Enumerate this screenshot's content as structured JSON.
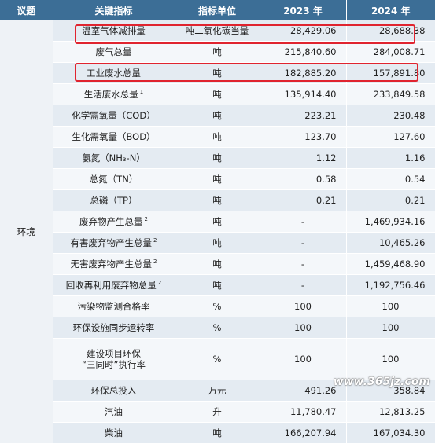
{
  "headers": [
    "议题",
    "关键指标",
    "指标单位",
    "2023 年",
    "2024 年"
  ],
  "topic": "环境",
  "rows": [
    {
      "name": "温室气体减排量",
      "sup": "",
      "unit": "吨二氧化碳当量",
      "y2023": "28,429.06",
      "y2024": "28,688.38"
    },
    {
      "name": "废气总量",
      "sup": "",
      "unit": "吨",
      "y2023": "215,840.60",
      "y2024": "284,008.71"
    },
    {
      "name": "工业废水总量",
      "sup": "",
      "unit": "吨",
      "y2023": "182,885.20",
      "y2024": "157,891.80"
    },
    {
      "name": "生活废水总量",
      "sup": "1",
      "unit": "吨",
      "y2023": "135,914.40",
      "y2024": "233,849.58"
    },
    {
      "name": "化学需氧量（COD）",
      "sup": "",
      "unit": "吨",
      "y2023": "223.21",
      "y2024": "230.48"
    },
    {
      "name": "生化需氧量（BOD）",
      "sup": "",
      "unit": "吨",
      "y2023": "123.70",
      "y2024": "127.60"
    },
    {
      "name": "氨氮（NH₃-N）",
      "sup": "",
      "unit": "吨",
      "y2023": "1.12",
      "y2024": "1.16"
    },
    {
      "name": "总氮（TN）",
      "sup": "",
      "unit": "吨",
      "y2023": "0.58",
      "y2024": "0.54"
    },
    {
      "name": "总磷（TP）",
      "sup": "",
      "unit": "吨",
      "y2023": "0.21",
      "y2024": "0.21"
    },
    {
      "name": "废弃物产生总量",
      "sup": "2",
      "unit": "吨",
      "y2023": "-",
      "y2024": "1,469,934.16"
    },
    {
      "name": "有害废弃物产生总量",
      "sup": "2",
      "unit": "吨",
      "y2023": "-",
      "y2024": "10,465.26"
    },
    {
      "name": "无害废弃物产生总量",
      "sup": "2",
      "unit": "吨",
      "y2023": "-",
      "y2024": "1,459,468.90"
    },
    {
      "name": "回收再利用废弃物总量",
      "sup": "2",
      "unit": "吨",
      "y2023": "-",
      "y2024": "1,192,756.46"
    },
    {
      "name": "污染物监测合格率",
      "sup": "",
      "unit": "%",
      "y2023": "100",
      "y2024": "100"
    },
    {
      "name": "环保设施同步运转率",
      "sup": "",
      "unit": "%",
      "y2023": "100",
      "y2024": "100"
    },
    {
      "name": "建设项目环保“三同时”执行率",
      "sup": "",
      "unit": "%",
      "y2023": "100",
      "y2024": "100"
    },
    {
      "name": "环保总投入",
      "sup": "",
      "unit": "万元",
      "y2023": "491.26",
      "y2024": "358.84"
    },
    {
      "name": "汽油",
      "sup": "",
      "unit": "升",
      "y2023": "11,780.47",
      "y2024": "12,813.25"
    },
    {
      "name": "柴油",
      "sup": "",
      "unit": "吨",
      "y2023": "166,207.94",
      "y2024": "167,034.30"
    }
  ],
  "watermark": "www.365jz.com",
  "colors": {
    "header_bg": "#3c6e96",
    "row_odd": "#e4ebf2",
    "row_even": "#f4f7fa",
    "highlight": "#e0242f"
  }
}
